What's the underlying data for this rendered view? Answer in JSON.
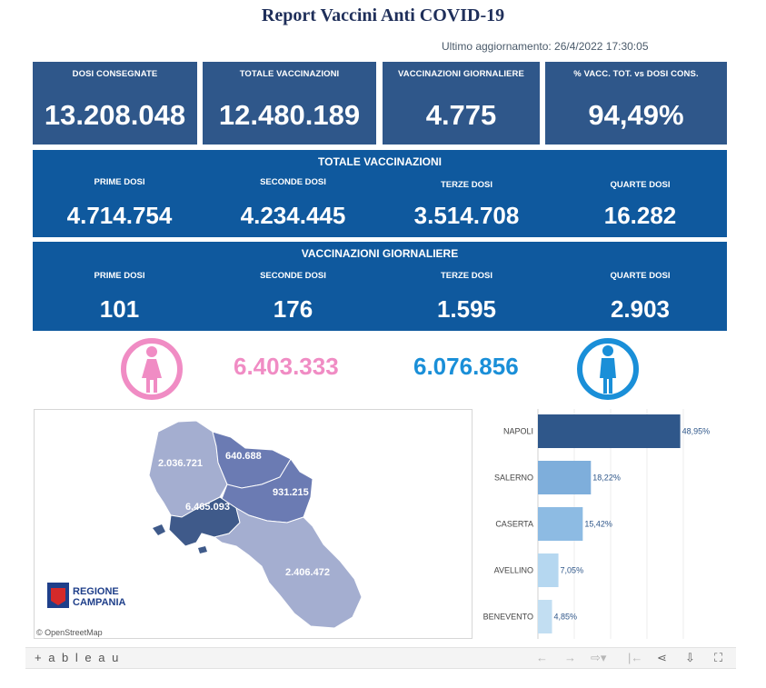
{
  "header": {
    "title": "Report Vaccini Anti COVID-19",
    "last_update": "Ultimo aggiornamento: 26/4/2022 17:30:05"
  },
  "kpis": [
    {
      "label": "DOSI  CONSEGNATE",
      "value": "13.208.048"
    },
    {
      "label": "TOTALE VACCINAZIONI",
      "value": "12.480.189"
    },
    {
      "label": "VACCINAZIONI GIORNALIERE",
      "value": "4.775"
    },
    {
      "label": "% VACC. TOT. vs DOSI CONS.",
      "value": "94,49%"
    }
  ],
  "totale_vaccinazioni": {
    "title": "TOTALE VACCINAZIONI",
    "items": [
      {
        "label": "PRIME DOSI",
        "value": "4.714.754"
      },
      {
        "label": "SECONDE DOSI",
        "value": "4.234.445"
      },
      {
        "label": "TERZE DOSI",
        "value": "3.514.708"
      },
      {
        "label": "QUARTE DOSI",
        "value": "16.282"
      }
    ]
  },
  "vaccinazioni_giornaliere": {
    "title": "VACCINAZIONI GIORNALIERE",
    "items": [
      {
        "label": "PRIME DOSI",
        "value": "101"
      },
      {
        "label": "SECONDE DOSI",
        "value": "176"
      },
      {
        "label": "TERZE DOSI",
        "value": "1.595"
      },
      {
        "label": "QUARTE DOSI",
        "value": "2.903"
      }
    ]
  },
  "gender": {
    "female_value": "6.403.333",
    "male_value": "6.076.856",
    "female_color": "#f08cc4",
    "male_color": "#1a8fd8",
    "female_icon": "female-person-icon",
    "male_icon": "male-person-icon"
  },
  "map": {
    "labels": {
      "caserta": "2.036.721",
      "benevento": "640.688",
      "avellino": "931.215",
      "napoli": "6.465.093",
      "salerno": "2.406.472"
    },
    "logo_line1": "REGIONE",
    "logo_line2": "CAMPANIA",
    "attribution": "© OpenStreetMap"
  },
  "chart_data": {
    "type": "bar",
    "orientation": "horizontal",
    "categories": [
      "NAPOLI",
      "SALERNO",
      "CASERTA",
      "AVELLINO",
      "BENEVENTO"
    ],
    "values": [
      48.95,
      18.22,
      15.42,
      7.05,
      4.85
    ],
    "value_labels": [
      "48,95%",
      "18,22%",
      "15,42%",
      "7,05%",
      "4,85%"
    ],
    "colors": [
      "#2f578a",
      "#7eaedb",
      "#8dbbe3",
      "#b5d7f0",
      "#c2def2"
    ],
    "xlim": [
      0,
      50
    ],
    "grid": true
  },
  "toolbar": {
    "brand": "+ a b l e a u",
    "icons": [
      "undo-icon",
      "redo-icon",
      "revert-icon",
      "pause-icon",
      "share-icon",
      "download-icon",
      "fullscreen-icon"
    ]
  }
}
